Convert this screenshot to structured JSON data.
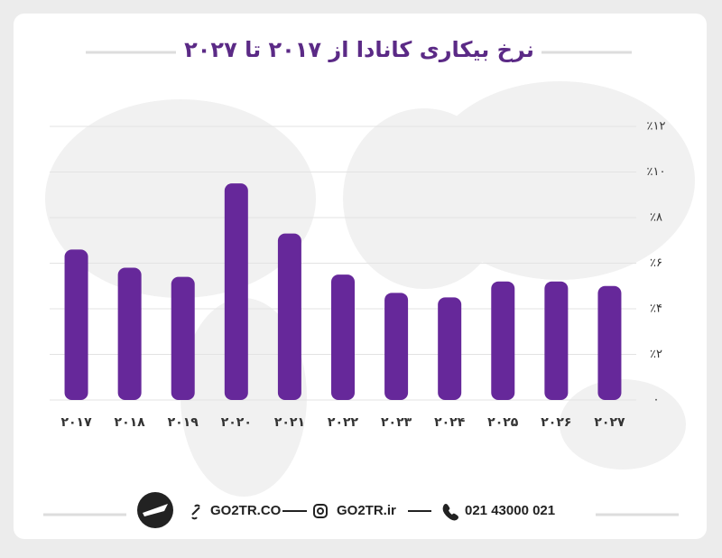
{
  "chart_data": {
    "type": "bar",
    "title": "نرخ بیکاری کانادا از ۲۰۱۷ تا ۲۰۲۷",
    "categories": [
      "۲۰۱۷",
      "۲۰۱۸",
      "۲۰۱۹",
      "۲۰۲۰",
      "۲۰۲۱",
      "۲۰۲۲",
      "۲۰۲۳",
      "۲۰۲۴",
      "۲۰۲۵",
      "۲۰۲۶",
      "۲۰۲۷"
    ],
    "values": [
      6.6,
      5.8,
      5.4,
      9.5,
      7.3,
      5.5,
      4.7,
      4.5,
      5.2,
      5.2,
      5.0
    ],
    "color": "#66289a",
    "ylim": [
      0,
      12
    ],
    "yticks": [
      {
        "value": 0,
        "label": "۰"
      },
      {
        "value": 2,
        "label": "٪۲"
      },
      {
        "value": 4,
        "label": "٪۴"
      },
      {
        "value": 6,
        "label": "٪۶"
      },
      {
        "value": 8,
        "label": "٪۸"
      },
      {
        "value": 10,
        "label": "٪۱۰"
      },
      {
        "value": 12,
        "label": "٪۱۲"
      }
    ],
    "grid": true
  },
  "footer": {
    "website": "GO2TR.CO",
    "instagram": "GO2TR.ir",
    "phone": "021 43000 021"
  }
}
